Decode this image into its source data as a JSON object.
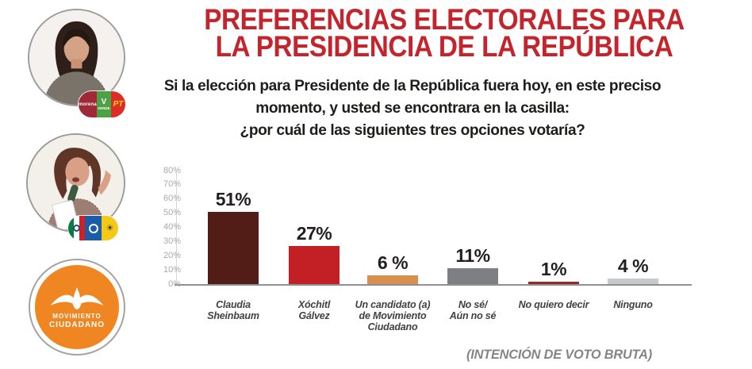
{
  "colors": {
    "title_red": "#c4242b",
    "subtitle_text": "#1d1d1b",
    "axis_text": "#a7a9ac",
    "axis_line": "#8e9093",
    "value_label": "#231f20",
    "category_label": "#414042",
    "footer_gray": "#838588",
    "mc_orange": "#f08621",
    "morena_maroon": "#9f2936",
    "verde_green": "#4ba143",
    "pt_red": "#dd2c26",
    "pt_yellow": "#f9d616",
    "pan_blue": "#1b5ca8",
    "prd_yellow": "#f5c916",
    "pri_green": "#0b7a40",
    "pri_red": "#d02027"
  },
  "header": {
    "title_line1": "PREFERENCIAS ELECTORALES PARA",
    "title_line2": "LA PRESIDENCIA DE LA REPÚBLICA",
    "subtitle_line1": "Si la elección para Presidente de la República fuera hoy, en este preciso",
    "subtitle_line2": "momento, y usted se encontrara en la casilla:",
    "subtitle_line3": "¿por cuál de las siguientes tres opciones votaría?"
  },
  "sidebar": {
    "candidates": [
      {
        "name": "Claudia Sheinbaum",
        "parties": [
          "morena",
          "VERDE",
          "PT"
        ]
      },
      {
        "name": "Xóchitl Gálvez",
        "parties": [
          "PRI",
          "PAN",
          "PRD"
        ]
      }
    ],
    "chip1": {
      "morena_label": "morena",
      "verde_label": "VERDE",
      "pt_label": "PT"
    },
    "mc_logo": {
      "line1": "MOVIMIENTO",
      "line2": "CIUDADANO"
    }
  },
  "chart_data": {
    "type": "bar",
    "title": "",
    "xlabel": "",
    "ylabel": "",
    "categories": [
      "Claudia Sheinbaum",
      "Xóchitl Gálvez",
      "Un candidato (a) de Movimiento Ciudadano",
      "No sé/ Aún no sé",
      "No quiero decir",
      "Ninguno"
    ],
    "category_lines": [
      [
        "Claudia",
        "Sheinbaum"
      ],
      [
        "Xóchitl",
        "Gálvez"
      ],
      [
        "Un candidato (a)",
        "de Movimiento",
        "Ciudadano"
      ],
      [
        "No sé/",
        "Aún no sé"
      ],
      [
        "No quiero decir"
      ],
      [
        "Ninguno"
      ]
    ],
    "values": [
      51,
      27,
      6,
      11,
      1,
      4
    ],
    "value_labels": [
      "51%",
      "27%",
      "6 %",
      "11%",
      "1%",
      "4 %"
    ],
    "bar_colors": [
      "#521c17",
      "#c32026",
      "#d98f4e",
      "#7d7f82",
      "#99282c",
      "#c8c9cb"
    ],
    "ylim": [
      0,
      80
    ],
    "y_tick_values": [
      0,
      10,
      20,
      30,
      40,
      50,
      60,
      70,
      80
    ],
    "y_tick_labels": [
      "0%",
      "10%",
      "20%",
      "30%",
      "40%",
      "50%",
      "60%",
      "70%",
      "80%"
    ],
    "grid": false,
    "legend": false
  },
  "footer": {
    "note": "(INTENCIÓN DE VOTO BRUTA)"
  }
}
